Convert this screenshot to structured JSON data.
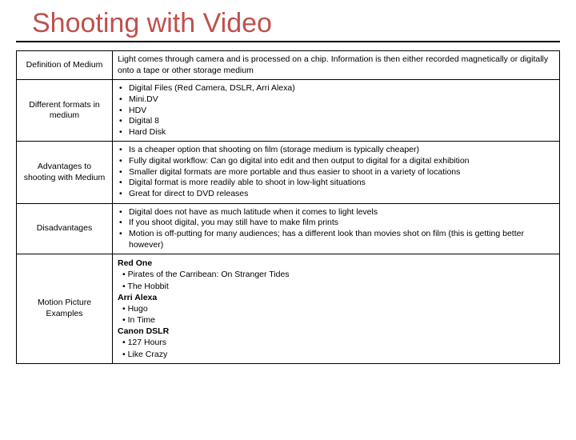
{
  "title": "Shooting with Video",
  "rows": {
    "definition": {
      "label": "Definition of Medium",
      "text": "Light comes through camera and is processed on a chip.  Information is then either recorded magnetically or digitally onto a tape or other storage medium"
    },
    "formats": {
      "label": "Different formats in medium",
      "items": [
        "Digital Files (Red Camera, DSLR, Arri Alexa)",
        "Mini.DV",
        "HDV",
        "Digital 8",
        "Hard Disk"
      ]
    },
    "advantages": {
      "label": "Advantages to shooting with Medium",
      "items": [
        "Is a cheaper option that shooting on film (storage medium is typically cheaper)",
        "Fully digital workflow:  Can go digital into edit and then output to digital for a digital exhibition",
        "Smaller digital formats are more portable and thus easier to shoot in a variety of locations",
        "Digital format is more readily able to shoot in low-light situations",
        "Great for direct to DVD releases"
      ]
    },
    "disadvantages": {
      "label": "Disadvantages",
      "items": [
        "Digital does not have as much latitude when it comes to light levels",
        "If you shoot digital, you may still have to make film prints",
        "Motion is off-putting for many audiences; has a different look than movies shot on film (this is getting better however)"
      ]
    },
    "examples": {
      "label": "Motion Picture Examples",
      "groups": [
        {
          "header": "Red One",
          "items": [
            "Pirates of the Carribean: On Stranger Tides",
            "The Hobbit"
          ]
        },
        {
          "header": "Arri Alexa",
          "items": [
            "Hugo",
            "In Time"
          ]
        },
        {
          "header": "Canon DSLR",
          "items": [
            "127 Hours",
            "Like Crazy"
          ]
        }
      ]
    }
  }
}
